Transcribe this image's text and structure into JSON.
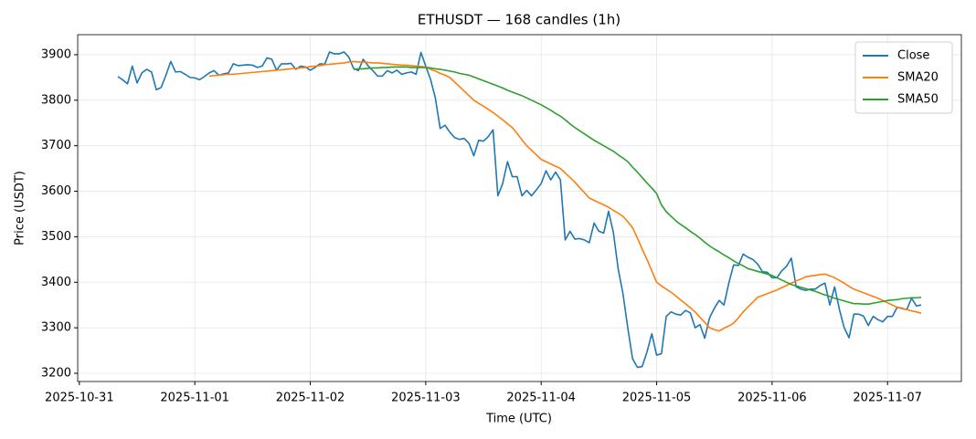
{
  "chart_data": {
    "type": "line",
    "title": "ETHUSDT — 168 candles (1h)",
    "xlabel": "Time (UTC)",
    "ylabel": "Price (USDT)",
    "x": [
      "2025-10-31 08:00",
      "2025-10-31 09:00",
      "2025-10-31 10:00",
      "2025-10-31 11:00",
      "2025-10-31 12:00",
      "2025-10-31 13:00",
      "2025-10-31 14:00",
      "2025-10-31 15:00",
      "2025-10-31 16:00",
      "2025-10-31 17:00",
      "2025-10-31 18:00",
      "2025-10-31 19:00",
      "2025-10-31 20:00",
      "2025-10-31 21:00",
      "2025-10-31 22:00",
      "2025-10-31 23:00",
      "2025-11-01 00:00",
      "2025-11-01 01:00",
      "2025-11-01 02:00",
      "2025-11-01 03:00",
      "2025-11-01 04:00",
      "2025-11-01 05:00",
      "2025-11-01 06:00",
      "2025-11-01 07:00",
      "2025-11-01 08:00",
      "2025-11-01 09:00",
      "2025-11-01 10:00",
      "2025-11-01 11:00",
      "2025-11-01 12:00",
      "2025-11-01 13:00",
      "2025-11-01 14:00",
      "2025-11-01 15:00",
      "2025-11-01 16:00",
      "2025-11-01 17:00",
      "2025-11-01 18:00",
      "2025-11-01 19:00",
      "2025-11-01 20:00",
      "2025-11-01 21:00",
      "2025-11-01 22:00",
      "2025-11-01 23:00",
      "2025-11-02 00:00",
      "2025-11-02 01:00",
      "2025-11-02 02:00",
      "2025-11-02 03:00",
      "2025-11-02 04:00",
      "2025-11-02 05:00",
      "2025-11-02 06:00",
      "2025-11-02 07:00",
      "2025-11-02 08:00",
      "2025-11-02 09:00",
      "2025-11-02 10:00",
      "2025-11-02 11:00",
      "2025-11-02 12:00",
      "2025-11-02 13:00",
      "2025-11-02 14:00",
      "2025-11-02 15:00",
      "2025-11-02 16:00",
      "2025-11-02 17:00",
      "2025-11-02 18:00",
      "2025-11-02 19:00",
      "2025-11-02 20:00",
      "2025-11-02 21:00",
      "2025-11-02 22:00",
      "2025-11-02 23:00",
      "2025-11-03 00:00",
      "2025-11-03 01:00",
      "2025-11-03 02:00",
      "2025-11-03 03:00",
      "2025-11-03 04:00",
      "2025-11-03 05:00",
      "2025-11-03 06:00",
      "2025-11-03 07:00",
      "2025-11-03 08:00",
      "2025-11-03 09:00",
      "2025-11-03 10:00",
      "2025-11-03 11:00",
      "2025-11-03 12:00",
      "2025-11-03 13:00",
      "2025-11-03 14:00",
      "2025-11-03 15:00",
      "2025-11-03 16:00",
      "2025-11-03 17:00",
      "2025-11-03 18:00",
      "2025-11-03 19:00",
      "2025-11-03 20:00",
      "2025-11-03 21:00",
      "2025-11-03 22:00",
      "2025-11-03 23:00",
      "2025-11-04 00:00",
      "2025-11-04 01:00",
      "2025-11-04 02:00",
      "2025-11-04 03:00",
      "2025-11-04 04:00",
      "2025-11-04 05:00",
      "2025-11-04 06:00",
      "2025-11-04 07:00",
      "2025-11-04 08:00",
      "2025-11-04 09:00",
      "2025-11-04 10:00",
      "2025-11-04 11:00",
      "2025-11-04 12:00",
      "2025-11-04 13:00",
      "2025-11-04 14:00",
      "2025-11-04 15:00",
      "2025-11-04 16:00",
      "2025-11-04 17:00",
      "2025-11-04 18:00",
      "2025-11-04 19:00",
      "2025-11-04 20:00",
      "2025-11-04 21:00",
      "2025-11-04 22:00",
      "2025-11-04 23:00",
      "2025-11-05 00:00",
      "2025-11-05 01:00",
      "2025-11-05 02:00",
      "2025-11-05 03:00",
      "2025-11-05 04:00",
      "2025-11-05 05:00",
      "2025-11-05 06:00",
      "2025-11-05 07:00",
      "2025-11-05 08:00",
      "2025-11-05 09:00",
      "2025-11-05 10:00",
      "2025-11-05 11:00",
      "2025-11-05 12:00",
      "2025-11-05 13:00",
      "2025-11-05 14:00",
      "2025-11-05 15:00",
      "2025-11-05 16:00",
      "2025-11-05 17:00",
      "2025-11-05 18:00",
      "2025-11-05 19:00",
      "2025-11-05 20:00",
      "2025-11-05 21:00",
      "2025-11-05 22:00",
      "2025-11-05 23:00",
      "2025-11-06 00:00",
      "2025-11-06 01:00",
      "2025-11-06 02:00",
      "2025-11-06 03:00",
      "2025-11-06 04:00",
      "2025-11-06 05:00",
      "2025-11-06 06:00",
      "2025-11-06 07:00",
      "2025-11-06 08:00",
      "2025-11-06 09:00",
      "2025-11-06 10:00",
      "2025-11-06 11:00",
      "2025-11-06 12:00",
      "2025-11-06 13:00",
      "2025-11-06 14:00",
      "2025-11-06 15:00",
      "2025-11-06 16:00",
      "2025-11-06 17:00",
      "2025-11-06 18:00",
      "2025-11-06 19:00",
      "2025-11-06 20:00",
      "2025-11-06 21:00",
      "2025-11-06 22:00",
      "2025-11-06 23:00",
      "2025-11-07 00:00",
      "2025-11-07 01:00",
      "2025-11-07 02:00",
      "2025-11-07 03:00",
      "2025-11-07 04:00",
      "2025-11-07 05:00",
      "2025-11-07 06:00",
      "2025-11-07 07:00"
    ],
    "series": [
      {
        "name": "Close",
        "color": "#1f77b4",
        "values": [
          3852,
          3845,
          3836,
          3875,
          3838,
          3860,
          3868,
          3862,
          3823,
          3828,
          3855,
          3885,
          3862,
          3863,
          3857,
          3850,
          3849,
          3845,
          3852,
          3860,
          3865,
          3855,
          3858,
          3860,
          3880,
          3876,
          3877,
          3878,
          3877,
          3872,
          3875,
          3893,
          3890,
          3866,
          3880,
          3880,
          3881,
          3868,
          3875,
          3873,
          3866,
          3872,
          3880,
          3879,
          3906,
          3902,
          3902,
          3906,
          3895,
          3870,
          3865,
          3890,
          3876,
          3865,
          3853,
          3853,
          3865,
          3860,
          3866,
          3857,
          3860,
          3862,
          3857,
          3905,
          3875,
          3846,
          3805,
          3738,
          3745,
          3730,
          3718,
          3714,
          3716,
          3705,
          3678,
          3712,
          3710,
          3720,
          3735,
          3590,
          3617,
          3665,
          3632,
          3632,
          3590,
          3602,
          3590,
          3603,
          3617,
          3645,
          3625,
          3642,
          3625,
          3493,
          3512,
          3495,
          3496,
          3493,
          3487,
          3530,
          3512,
          3508,
          3556,
          3510,
          3430,
          3375,
          3300,
          3232,
          3213,
          3215,
          3247,
          3287,
          3240,
          3243,
          3325,
          3335,
          3330,
          3328,
          3338,
          3333,
          3300,
          3307,
          3277,
          3322,
          3343,
          3360,
          3350,
          3398,
          3438,
          3437,
          3462,
          3455,
          3450,
          3440,
          3423,
          3422,
          3410,
          3410,
          3425,
          3435,
          3453,
          3390,
          3385,
          3382,
          3385,
          3385,
          3393,
          3398,
          3350,
          3390,
          3340,
          3300,
          3278,
          3330,
          3330,
          3326,
          3305,
          3325,
          3318,
          3313,
          3325,
          3325,
          3345,
          3343,
          3340,
          3365,
          3348,
          3350
        ]
      },
      {
        "name": "SMA20",
        "color": "#ff7f0e",
        "values": [
          null,
          null,
          null,
          null,
          null,
          null,
          null,
          null,
          null,
          null,
          null,
          null,
          null,
          null,
          null,
          null,
          null,
          null,
          null,
          3853,
          3854,
          3855,
          3856,
          3857,
          3857,
          3858,
          3859,
          3860,
          3861,
          3862,
          3863,
          3864,
          3865,
          3866,
          3867,
          3868,
          3869,
          3870,
          3871,
          3872,
          3874,
          3875,
          3876,
          3878,
          3879,
          3880,
          3881,
          3882,
          3884,
          3885,
          3884,
          3884,
          3883,
          3882,
          3882,
          3881,
          3880,
          3879,
          3878,
          3877,
          3877,
          3876,
          3875,
          3874,
          3873,
          3868,
          3864,
          3859,
          3855,
          3850,
          3840,
          3830,
          3820,
          3810,
          3800,
          3793,
          3787,
          3780,
          3773,
          3765,
          3757,
          3748,
          3740,
          3727,
          3713,
          3700,
          3690,
          3680,
          3670,
          3665,
          3660,
          3655,
          3650,
          3640,
          3630,
          3620,
          3608,
          3597,
          3585,
          3580,
          3575,
          3570,
          3565,
          3558,
          3552,
          3545,
          3533,
          3520,
          3497,
          3473,
          3450,
          3425,
          3400,
          3392,
          3385,
          3378,
          3370,
          3361,
          3353,
          3344,
          3335,
          3323,
          3312,
          3300,
          3296,
          3293,
          3299,
          3304,
          3310,
          3322,
          3335,
          3346,
          3356,
          3367,
          3371,
          3375,
          3379,
          3383,
          3388,
          3393,
          3398,
          3403,
          3407,
          3412,
          3414,
          3415,
          3417,
          3418,
          3414,
          3410,
          3404,
          3398,
          3391,
          3385,
          3381,
          3377,
          3373,
          3369,
          3365,
          3360,
          3355,
          3350,
          3345,
          3342,
          3340,
          3337,
          3335,
          3332
        ]
      },
      {
        "name": "SMA50",
        "color": "#2ca02c",
        "values": [
          null,
          null,
          null,
          null,
          null,
          null,
          null,
          null,
          null,
          null,
          null,
          null,
          null,
          null,
          null,
          null,
          null,
          null,
          null,
          null,
          null,
          null,
          null,
          null,
          null,
          null,
          null,
          null,
          null,
          null,
          null,
          null,
          null,
          null,
          null,
          null,
          null,
          null,
          null,
          null,
          null,
          null,
          null,
          null,
          null,
          null,
          null,
          null,
          null,
          3868,
          3869,
          3869,
          3870,
          3871,
          3871,
          3872,
          3872,
          3873,
          3873,
          3873,
          3873,
          3872,
          3872,
          3872,
          3872,
          3871,
          3869,
          3868,
          3866,
          3864,
          3862,
          3859,
          3857,
          3855,
          3851,
          3847,
          3843,
          3839,
          3835,
          3831,
          3827,
          3822,
          3818,
          3814,
          3810,
          3805,
          3800,
          3795,
          3790,
          3784,
          3778,
          3771,
          3765,
          3757,
          3748,
          3740,
          3733,
          3726,
          3719,
          3712,
          3706,
          3700,
          3694,
          3688,
          3680,
          3673,
          3665,
          3653,
          3642,
          3630,
          3618,
          3607,
          3595,
          3570,
          3555,
          3545,
          3535,
          3527,
          3520,
          3512,
          3505,
          3497,
          3488,
          3480,
          3473,
          3467,
          3460,
          3454,
          3447,
          3441,
          3436,
          3430,
          3427,
          3424,
          3421,
          3418,
          3415,
          3410,
          3405,
          3400,
          3395,
          3392,
          3389,
          3386,
          3383,
          3380,
          3376,
          3372,
          3369,
          3365,
          3362,
          3359,
          3356,
          3353,
          3353,
          3352,
          3352,
          3354,
          3356,
          3358,
          3360,
          3361,
          3362,
          3364,
          3365,
          3366,
          3366,
          3367
        ]
      }
    ],
    "xlim": [
      "2025-10-30 23:39",
      "2025-11-07 15:21"
    ],
    "xticks": [
      "2025-10-31",
      "2025-11-01",
      "2025-11-02",
      "2025-11-03",
      "2025-11-04",
      "2025-11-05",
      "2025-11-06",
      "2025-11-07"
    ],
    "ylim": [
      3182,
      3944
    ],
    "yticks": [
      3200,
      3300,
      3400,
      3500,
      3600,
      3700,
      3800,
      3900
    ],
    "grid": true,
    "legend": "upper right"
  }
}
